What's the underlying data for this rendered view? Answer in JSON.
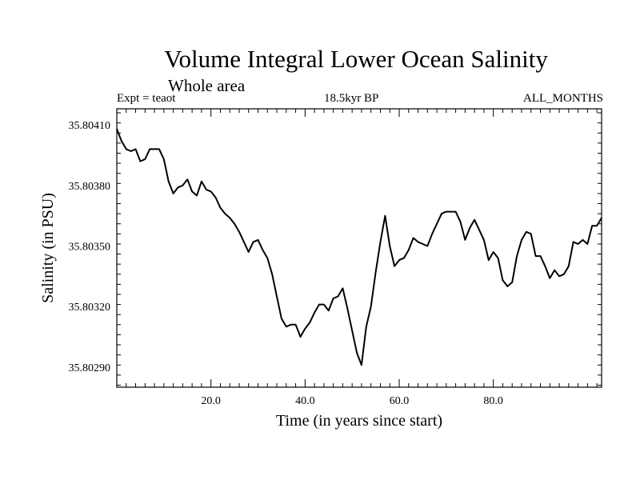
{
  "chart_data": {
    "type": "line",
    "title": "Volume Integral Lower Ocean Salinity",
    "subtitle": "Whole area",
    "header_left": "Expt = teaot",
    "header_center": "18.5kyr BP",
    "header_right": "ALL_MONTHS",
    "xlabel": "Time (in years since start)",
    "ylabel": "Salinity (in PSU)",
    "xlim": [
      0,
      103
    ],
    "ylim": [
      35.8028,
      35.80418
    ],
    "x_ticks": [
      20,
      40,
      60,
      80
    ],
    "x_tick_labels": [
      "20.0",
      "40.0",
      "60.0",
      "80.0"
    ],
    "y_ticks": [
      35.8029,
      35.8032,
      35.8035,
      35.8038,
      35.8041
    ],
    "y_tick_labels": [
      "35.80290",
      "35.80320",
      "35.80350",
      "35.80380",
      "35.80410"
    ],
    "series": [
      {
        "name": "Salinity",
        "x": [
          0,
          1,
          2,
          3,
          4,
          5,
          6,
          7,
          8,
          9,
          10,
          11,
          12,
          13,
          14,
          15,
          16,
          17,
          18,
          19,
          20,
          21,
          22,
          23,
          24,
          25,
          26,
          27,
          28,
          29,
          30,
          31,
          32,
          33,
          34,
          35,
          36,
          37,
          38,
          39,
          40,
          41,
          42,
          43,
          44,
          45,
          46,
          47,
          48,
          49,
          50,
          51,
          52,
          53,
          54,
          55,
          56,
          57,
          58,
          59,
          60,
          61,
          62,
          63,
          64,
          65,
          66,
          67,
          68,
          69,
          70,
          71,
          72,
          73,
          74,
          75,
          76,
          77,
          78,
          79,
          80,
          81,
          82,
          83,
          84,
          85,
          86,
          87,
          88,
          89,
          90,
          91,
          92,
          93,
          94,
          95,
          96,
          97,
          98,
          99,
          100,
          101,
          102,
          103
        ],
        "values": [
          35.80408,
          35.80402,
          35.80398,
          35.80397,
          35.80398,
          35.80392,
          35.80393,
          35.80398,
          35.80398,
          35.80398,
          35.80393,
          35.80382,
          35.80376,
          35.80379,
          35.8038,
          35.80383,
          35.80377,
          35.80375,
          35.80382,
          35.80378,
          35.80377,
          35.80374,
          35.80369,
          35.80366,
          35.80364,
          35.80361,
          35.80357,
          35.80352,
          35.80347,
          35.80352,
          35.80353,
          35.80348,
          35.80344,
          35.80336,
          35.80325,
          35.80314,
          35.8031,
          35.80311,
          35.80311,
          35.80305,
          35.80309,
          35.80312,
          35.80317,
          35.80321,
          35.80321,
          35.80318,
          35.80324,
          35.80325,
          35.80329,
          35.80319,
          35.80308,
          35.80297,
          35.80291,
          35.8031,
          35.8032,
          35.80337,
          35.80352,
          35.80365,
          35.8035,
          35.8034,
          35.80343,
          35.80344,
          35.80348,
          35.80354,
          35.80352,
          35.80351,
          35.8035,
          35.80356,
          35.80361,
          35.80366,
          35.80367,
          35.80367,
          35.80367,
          35.80362,
          35.80353,
          35.80359,
          35.80363,
          35.80358,
          35.80353,
          35.80343,
          35.80347,
          35.80344,
          35.80333,
          35.8033,
          35.80332,
          35.80345,
          35.80353,
          35.80357,
          35.80356,
          35.80345,
          35.80345,
          35.8034,
          35.80334,
          35.80338,
          35.80335,
          35.80336,
          35.8034,
          35.80352,
          35.80351,
          35.80353,
          35.80351,
          35.8036,
          35.8036,
          35.80364
        ]
      }
    ]
  }
}
